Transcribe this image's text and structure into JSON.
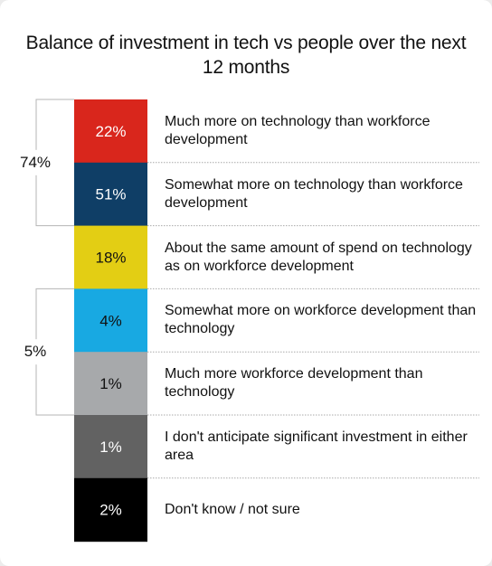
{
  "chart_data": {
    "type": "bar",
    "title": "Balance of investment in tech vs people over the next 12 months",
    "orientation": "stacked-column",
    "series": [
      {
        "label": "Much more on technology than workforce development",
        "value": 22,
        "value_text": "22%",
        "color": "#d9261c",
        "text_color": "#ffffff"
      },
      {
        "label": "Somewhat more on technology than workforce development",
        "value": 51,
        "value_text": "51%",
        "color": "#0f3e66",
        "text_color": "#ffffff"
      },
      {
        "label": "About the same amount of spend on technology as on workforce development",
        "value": 18,
        "value_text": "18%",
        "color": "#e3ce14",
        "text_color": "#111111"
      },
      {
        "label": "Somewhat more on workforce development than technology",
        "value": 4,
        "value_text": "4%",
        "color": "#18a9e2",
        "text_color": "#111111"
      },
      {
        "label": "Much more workforce development than technology",
        "value": 1,
        "value_text": "1%",
        "color": "#a7a9ab",
        "text_color": "#111111"
      },
      {
        "label": "I don't anticipate significant investment in either area",
        "value": 1,
        "value_text": "1%",
        "color": "#626262",
        "text_color": "#ffffff"
      },
      {
        "label": "Don't know / not sure",
        "value": 2,
        "value_text": "2%",
        "color": "#000000",
        "text_color": "#ffffff"
      }
    ],
    "groups": [
      {
        "label": "74%",
        "rows": [
          0,
          1
        ]
      },
      {
        "label": "5%",
        "rows": [
          3,
          4
        ]
      }
    ]
  }
}
